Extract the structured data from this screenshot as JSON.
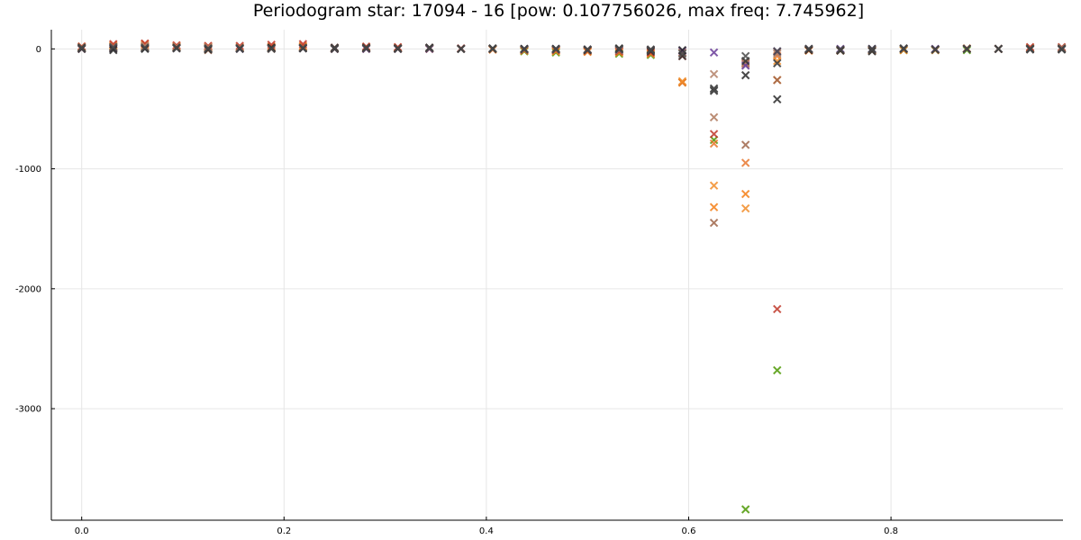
{
  "chart_data": {
    "type": "scatter",
    "title": "Periodogram star: 17094 - 16 [pow: 0.107756026, max freq: 7.745962]",
    "xlabel": "",
    "ylabel": "",
    "xlim": [
      -0.03,
      0.97
    ],
    "ylim": [
      -3930,
      160
    ],
    "xticks": [
      0.0,
      0.2,
      0.4,
      0.6,
      0.8
    ],
    "xtick_labels": [
      "0.0",
      "0.2",
      "0.4",
      "0.6",
      "0.8"
    ],
    "yticks": [
      0,
      -1000,
      -2000,
      -3000
    ],
    "ytick_labels": [
      "0",
      "-1000",
      "-2000",
      "-3000"
    ],
    "grid": true,
    "legend": "none",
    "marker": "x",
    "x": [
      0.0,
      0.03125,
      0.0625,
      0.09375,
      0.125,
      0.15625,
      0.1875,
      0.21875,
      0.25,
      0.28125,
      0.3125,
      0.34375,
      0.375,
      0.40625,
      0.4375,
      0.46875,
      0.5,
      0.53125,
      0.5625,
      0.59375,
      0.625,
      0.65625,
      0.6875,
      0.71875,
      0.75,
      0.78125,
      0.8125,
      0.84375,
      0.875,
      0.90625,
      0.9375,
      0.96875
    ],
    "series": [
      {
        "color": "#4e9a06",
        "values": [
          5,
          10,
          15,
          10,
          5,
          10,
          5,
          10,
          5,
          5,
          5,
          5,
          0,
          0,
          -20,
          -30,
          -20,
          -40,
          -50,
          -280,
          -760,
          -3840,
          -2680,
          -10,
          -10,
          -10,
          -10,
          -10,
          -10,
          0,
          0,
          0
        ]
      },
      {
        "color": "#f57f17",
        "values": [
          20,
          30,
          40,
          25,
          20,
          15,
          20,
          25,
          5,
          15,
          10,
          5,
          0,
          -5,
          -15,
          -20,
          -25,
          -30,
          -40,
          -280,
          -1320,
          -1210,
          -260,
          -15,
          -15,
          -15,
          -10,
          -10,
          0,
          0,
          10,
          5
        ]
      },
      {
        "color": "#e8772e",
        "values": [
          10,
          15,
          20,
          15,
          10,
          10,
          15,
          20,
          5,
          10,
          5,
          0,
          0,
          -5,
          -10,
          -15,
          -20,
          -20,
          -40,
          -280,
          -790,
          -950,
          -60,
          -10,
          -10,
          -10,
          0,
          -5,
          5,
          0,
          5,
          5
        ]
      },
      {
        "color": "#f28e2b",
        "values": [
          0,
          25,
          30,
          20,
          15,
          5,
          10,
          15,
          0,
          5,
          5,
          0,
          0,
          -5,
          -10,
          -10,
          -15,
          -20,
          -30,
          -270,
          -1140,
          -1330,
          -100,
          -10,
          -10,
          -10,
          0,
          -5,
          0,
          0,
          5,
          5
        ]
      },
      {
        "color": "#c0392b",
        "values": [
          20,
          40,
          45,
          30,
          25,
          25,
          35,
          40,
          10,
          20,
          15,
          10,
          5,
          0,
          -10,
          -10,
          -15,
          -20,
          -30,
          -60,
          -710,
          -120,
          -2170,
          -10,
          -10,
          -10,
          0,
          -5,
          0,
          0,
          15,
          15
        ]
      },
      {
        "color": "#a0674b",
        "values": [
          0,
          5,
          10,
          5,
          -10,
          5,
          10,
          10,
          0,
          0,
          0,
          5,
          0,
          0,
          -5,
          -5,
          -10,
          -10,
          -10,
          -30,
          -1450,
          -800,
          -260,
          -5,
          -10,
          -10,
          0,
          -5,
          0,
          0,
          5,
          10
        ]
      },
      {
        "color": "#b07a5e",
        "values": [
          10,
          15,
          20,
          10,
          5,
          10,
          0,
          5,
          0,
          0,
          0,
          0,
          0,
          0,
          -5,
          -5,
          -10,
          -10,
          -15,
          -30,
          -570,
          -110,
          -40,
          -5,
          -5,
          -10,
          0,
          -5,
          0,
          0,
          0,
          0
        ]
      },
      {
        "color": "#b5836a",
        "values": [
          15,
          20,
          25,
          20,
          15,
          10,
          5,
          10,
          5,
          10,
          5,
          5,
          0,
          0,
          -5,
          -5,
          -10,
          -10,
          -15,
          -30,
          -210,
          -130,
          -30,
          -5,
          -5,
          -10,
          0,
          -5,
          0,
          0,
          0,
          5
        ]
      },
      {
        "color": "#6a3d9a",
        "values": [
          0,
          5,
          5,
          5,
          0,
          0,
          5,
          5,
          0,
          0,
          0,
          0,
          0,
          0,
          0,
          0,
          -5,
          -5,
          -10,
          -15,
          -30,
          -140,
          -20,
          0,
          0,
          0,
          0,
          0,
          0,
          0,
          0,
          0
        ]
      },
      {
        "color": "#2b2b2b",
        "values": [
          0,
          -10,
          0,
          5,
          -5,
          0,
          10,
          5,
          10,
          5,
          5,
          10,
          0,
          5,
          0,
          0,
          -10,
          0,
          -20,
          -10,
          -350,
          -220,
          -420,
          -10,
          -15,
          -20,
          0,
          -5,
          0,
          0,
          -5,
          -5
        ]
      },
      {
        "color": "#333333",
        "values": [
          10,
          0,
          5,
          10,
          0,
          5,
          5,
          5,
          0,
          10,
          0,
          10,
          0,
          0,
          0,
          0,
          -5,
          5,
          -5,
          -60,
          -330,
          -100,
          -120,
          0,
          -10,
          0,
          5,
          -5,
          0,
          0,
          0,
          0
        ]
      },
      {
        "color": "#4a4a4a",
        "values": [
          5,
          15,
          10,
          5,
          5,
          5,
          0,
          10,
          5,
          5,
          5,
          5,
          0,
          0,
          -5,
          -5,
          -5,
          -5,
          -10,
          -40,
          -340,
          -60,
          -20,
          0,
          -5,
          -5,
          0,
          -5,
          0,
          0,
          0,
          0
        ]
      }
    ]
  }
}
